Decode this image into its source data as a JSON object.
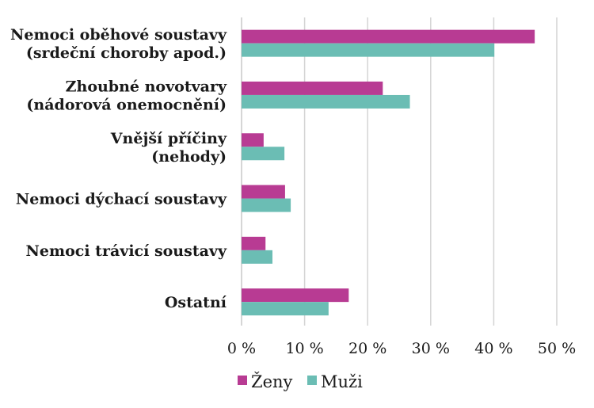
{
  "chart_data": {
    "type": "bar",
    "orientation": "horizontal",
    "categories": [
      [
        "Nemoci oběhové soustavy",
        "(srdeční choroby apod.)"
      ],
      [
        "Zhoubné novotvary",
        "(nádorová onemocnění)"
      ],
      [
        "Vnější příčiny",
        "(nehody)"
      ],
      [
        "Nemoci dýchací soustavy"
      ],
      [
        "Nemoci trávicí soustavy"
      ],
      [
        "Ostatní"
      ]
    ],
    "series": [
      {
        "name": "Ženy",
        "color": "#b83b93",
        "values": [
          46.5,
          22.4,
          3.5,
          6.9,
          3.8,
          17.0
        ]
      },
      {
        "name": "Muži",
        "color": "#6bbdb4",
        "values": [
          40.1,
          26.7,
          6.8,
          7.8,
          4.9,
          13.8
        ]
      }
    ],
    "xlim": [
      0,
      50
    ],
    "xticks": [
      0,
      10,
      20,
      30,
      40,
      50
    ],
    "xtick_labels": [
      "0 %",
      "10 %",
      "20 %",
      "30 %",
      "40 %",
      "50 %"
    ],
    "grid": "vertical",
    "legend_position": "bottom"
  }
}
